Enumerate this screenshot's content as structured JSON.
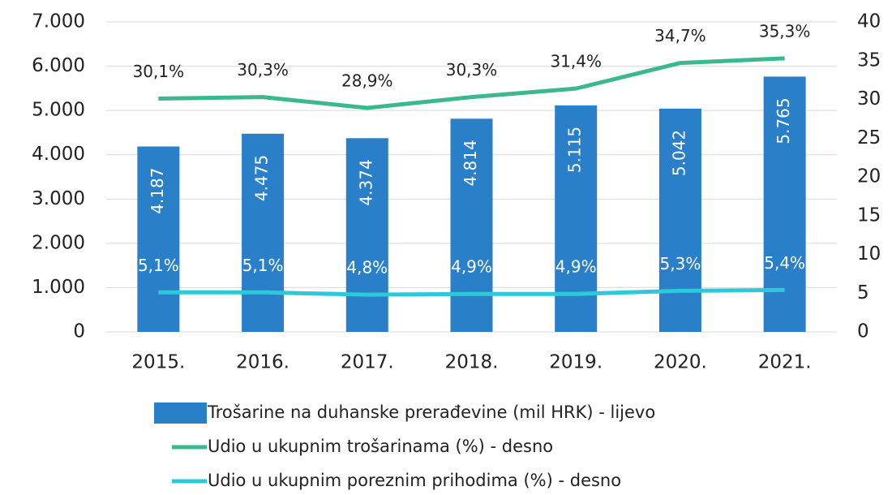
{
  "chart_data": {
    "type": "combo",
    "categories": [
      "2015.",
      "2016.",
      "2017.",
      "2018.",
      "2019.",
      "2020.",
      "2021."
    ],
    "series": [
      {
        "name": "Trošarine na duhanske prerađevine (mil HRK) - lijevo",
        "type": "bar",
        "color": "#2a80c8",
        "values": [
          4187,
          4475,
          4374,
          4814,
          5115,
          5042,
          5765
        ],
        "value_labels": [
          "4.187",
          "4.475",
          "4.374",
          "4.814",
          "5.115",
          "5.042",
          "5.765"
        ]
      },
      {
        "name": "Udio u ukupnim trošarinama (%) - desno",
        "type": "line",
        "axis": "y2",
        "color": "#3cb88f",
        "values": [
          30.1,
          30.3,
          28.9,
          30.3,
          31.4,
          34.7,
          35.3
        ],
        "value_labels": [
          "30,1%",
          "30,3%",
          "28,9%",
          "30,3%",
          "31,4%",
          "34,7%",
          "35,3%"
        ]
      },
      {
        "name": "Udio u ukupnim poreznim prihodima (%) - desno",
        "type": "line",
        "axis": "y2",
        "color": "#2ec8d8",
        "values": [
          5.1,
          5.1,
          4.8,
          4.9,
          4.9,
          5.3,
          5.4
        ],
        "value_labels": [
          "5,1%",
          "5,1%",
          "4,8%",
          "4,9%",
          "4,9%",
          "5,3%",
          "5,4%"
        ]
      }
    ],
    "ylim": [
      0,
      7000
    ],
    "yticks": [
      0,
      {
        "value": 1000,
        "label": "1.000"
      },
      {
        "value": 2000,
        "label": "2.000"
      },
      {
        "value": 3000,
        "label": "3.000"
      },
      {
        "value": 4000,
        "label": "4.000"
      },
      {
        "value": 5000,
        "label": "5.000"
      },
      {
        "value": 6000,
        "label": "6.000"
      },
      {
        "value": 7000,
        "label": "7.000"
      }
    ],
    "y2lim": [
      0,
      40
    ],
    "y2ticks": [
      0,
      5,
      10,
      15,
      20,
      25,
      30,
      35,
      40
    ],
    "grid": true
  }
}
